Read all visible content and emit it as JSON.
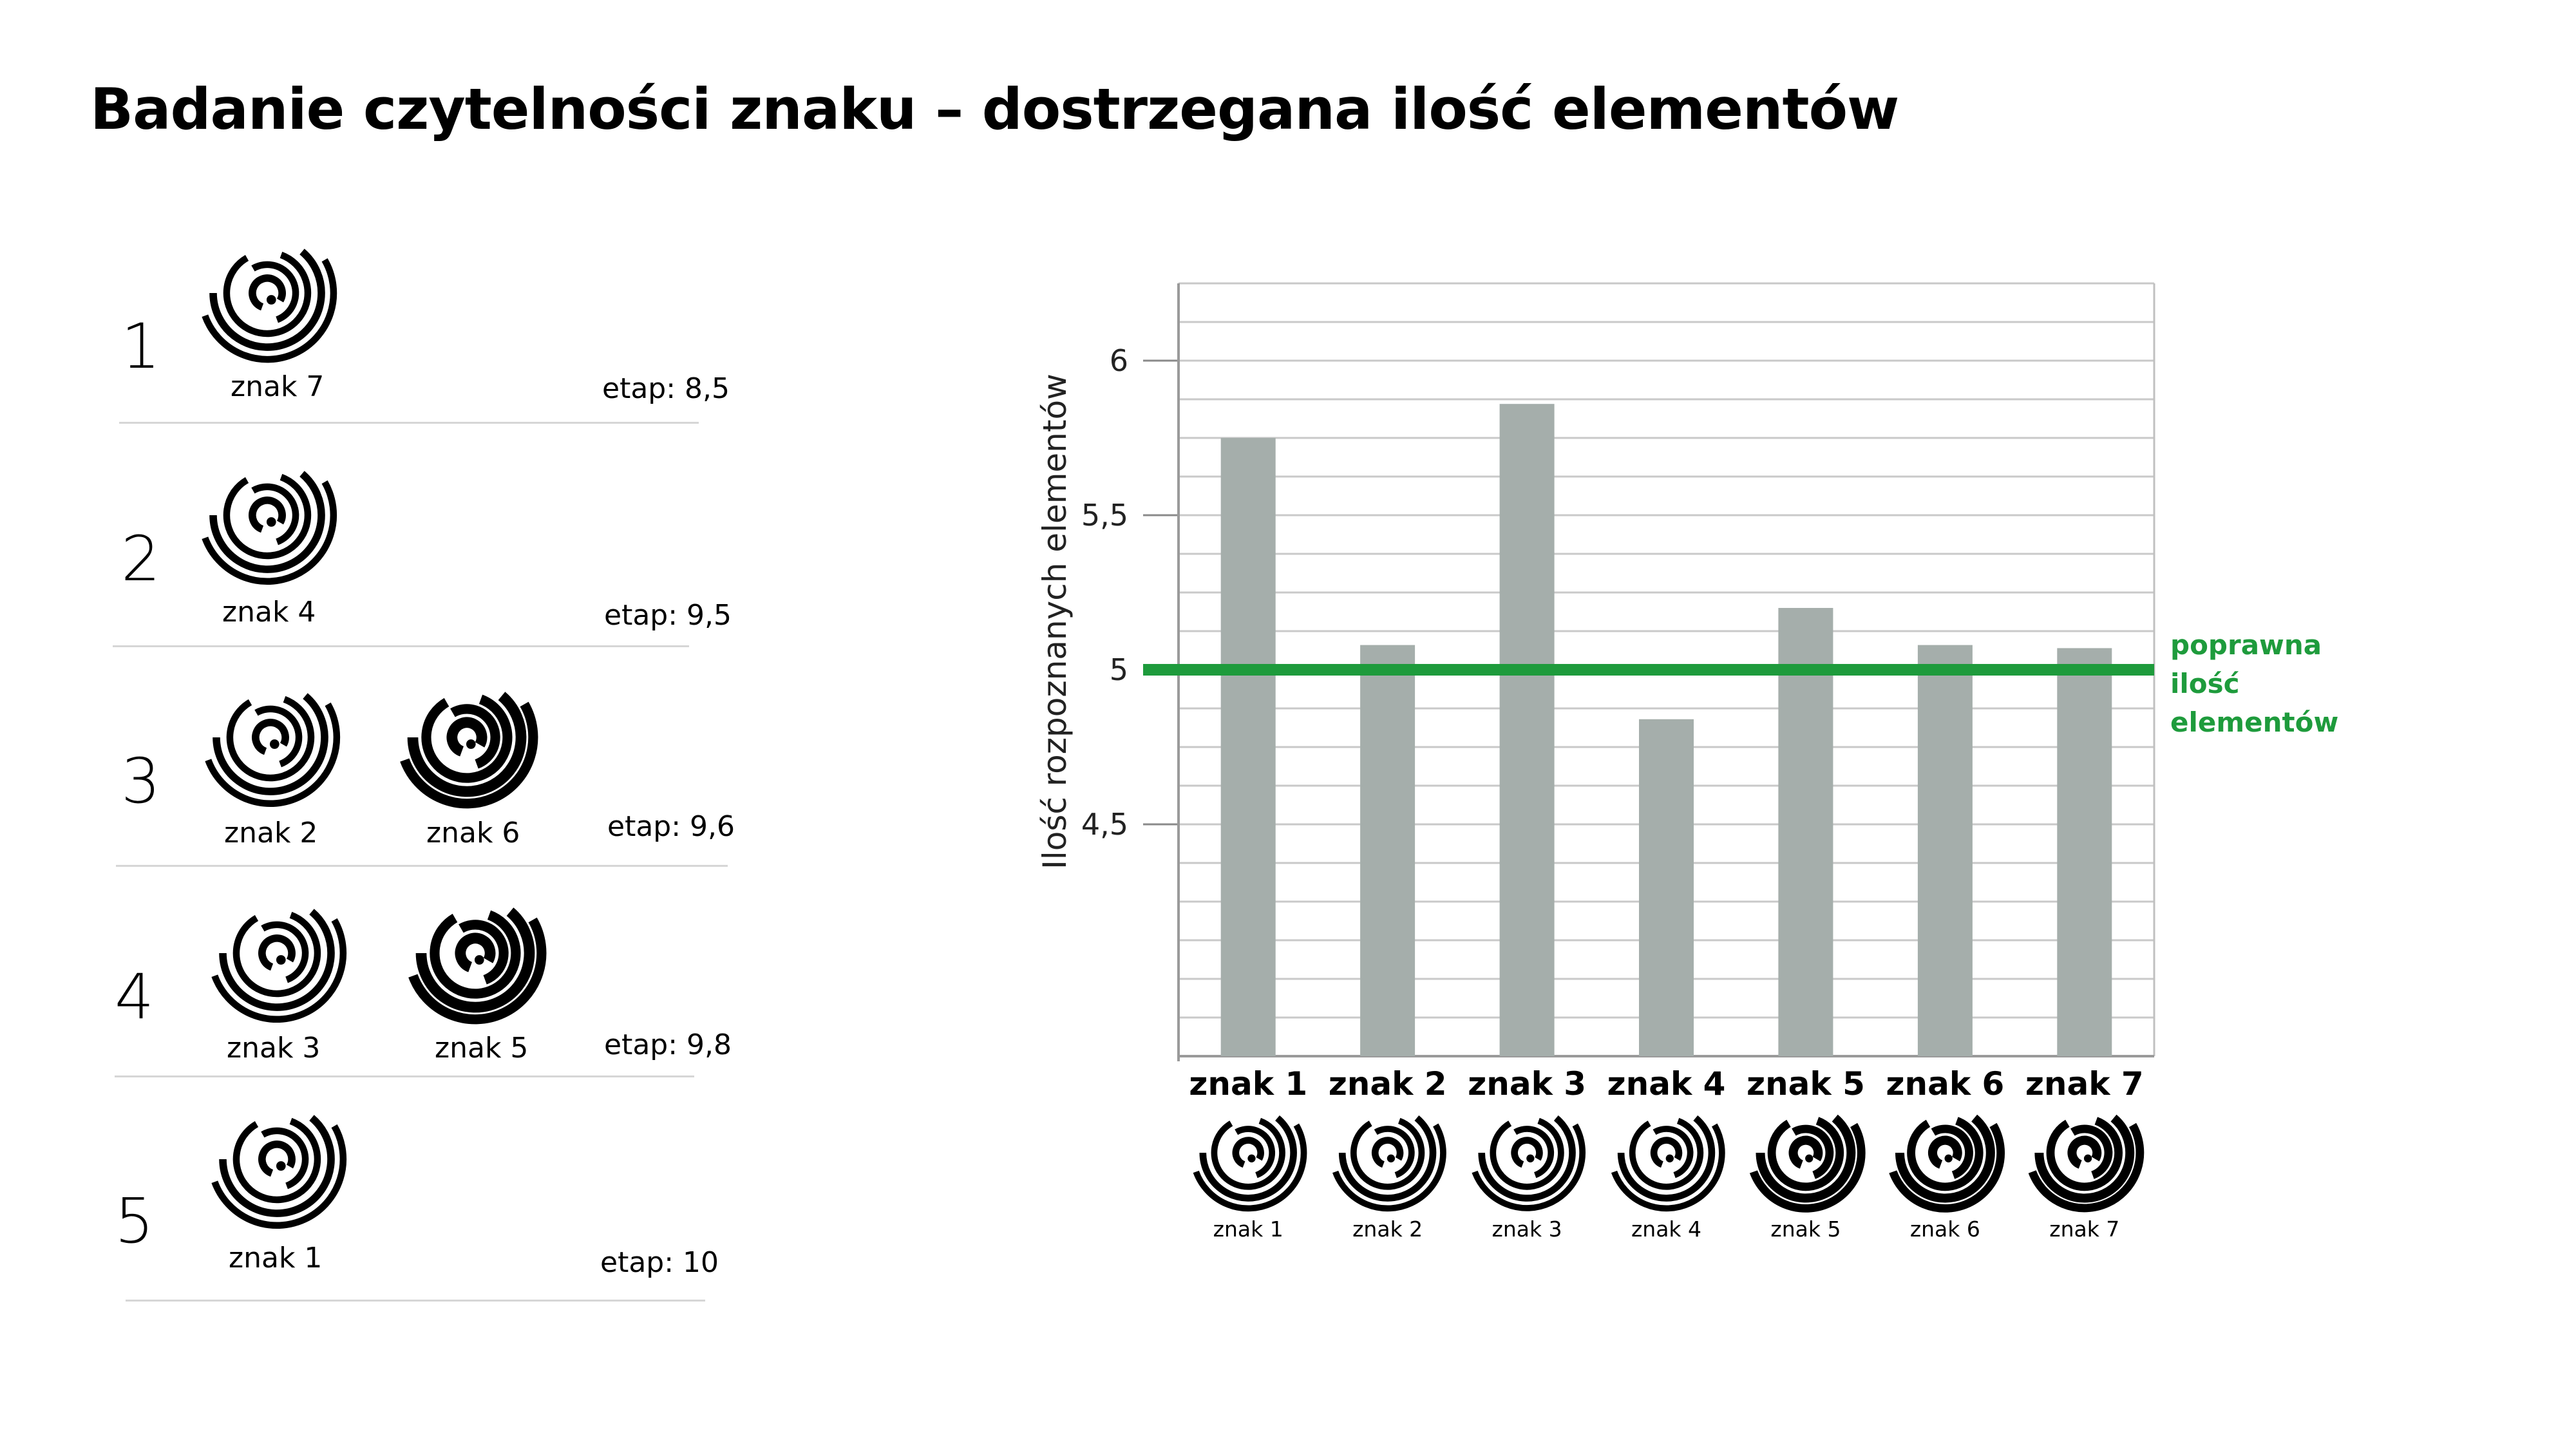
{
  "title": "Badanie czytelności znaku  – dostrzegana ilość elementów",
  "ranking": [
    {
      "rank": "1",
      "signs": [
        "znak 7"
      ],
      "etap": "etap: 8,5"
    },
    {
      "rank": "2",
      "signs": [
        "znak 4"
      ],
      "etap": "etap: 9,5"
    },
    {
      "rank": "3",
      "signs": [
        "znak 2",
        "znak 6"
      ],
      "etap": "etap: 9,6"
    },
    {
      "rank": "4",
      "signs": [
        "znak 3",
        "znak 5"
      ],
      "etap": "etap: 9,8"
    },
    {
      "rank": "5",
      "signs": [
        "znak 1"
      ],
      "etap": "etap: 10"
    }
  ],
  "colors": {
    "bar": "#a5aeab",
    "reference": "#1e9b3c",
    "grid": "#c9c9c9",
    "icon": "#000000"
  },
  "chart_data": {
    "type": "bar",
    "ylabel": "Ilość rozpoznanych elementów",
    "xlabel": "",
    "categories": [
      "znak 1",
      "znak 2",
      "znak 3",
      "znak 4",
      "znak 5",
      "znak 6",
      "znak 7"
    ],
    "icon_captions": [
      "znak 1",
      "znak 2",
      "znak 3",
      "znak 4",
      "znak 5",
      "znak 6",
      "znak 7"
    ],
    "values": [
      5.75,
      5.08,
      5.86,
      4.84,
      5.2,
      5.08,
      5.07
    ],
    "ylim": [
      3.75,
      6.25
    ],
    "yticks": [
      4.5,
      5,
      5.5,
      6
    ],
    "ytick_labels": [
      "4,5",
      "5",
      "5,5",
      "6"
    ],
    "minor_step": 0.125,
    "grid": true,
    "reference_line": {
      "value": 5,
      "label_lines": [
        "poprawna",
        "ilość",
        "elementów"
      ]
    }
  }
}
